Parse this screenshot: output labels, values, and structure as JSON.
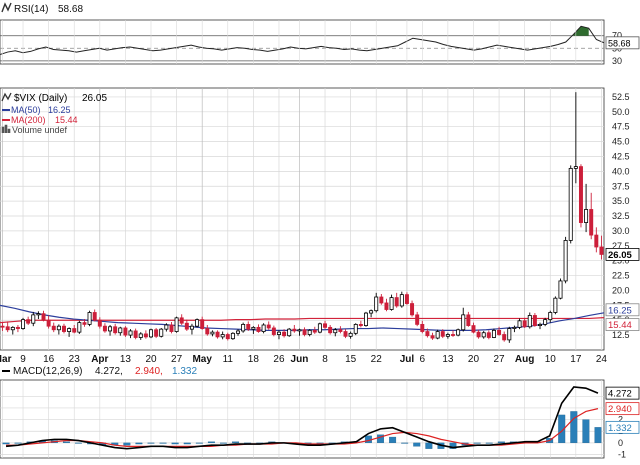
{
  "colors": {
    "background": "#ffffff",
    "grid": "#d8d8d8",
    "frame": "#333333",
    "up_candle": "#000000",
    "down_candle": "#cc1f3a",
    "ma50": "#2c3e9c",
    "ma200": "#d2233a",
    "rsi_line": "#222222",
    "rsi_fill": "#2e6b2e",
    "macd_line": "#000000",
    "macd_signal": "#dd2222",
    "macd_hist": "#2a7fb8",
    "current_price_box": "#000000"
  },
  "chart_data": [
    {
      "type": "line",
      "panel": "rsi",
      "legend_icon": "candlestick-icon",
      "legend_label": "RSI(14)",
      "legend_value": "58.68",
      "ylim": [
        25,
        95
      ],
      "reference_levels": [
        70,
        50,
        30
      ],
      "tick_labels": [
        "70",
        "50",
        "30"
      ],
      "current_value_label": "58.68",
      "series": [
        {
          "name": "RSI(14)",
          "values": [
            40,
            44,
            46,
            43,
            45,
            49,
            52,
            48,
            47,
            46,
            44,
            46,
            48,
            50,
            47,
            49,
            51,
            52,
            50,
            48,
            46,
            47,
            49,
            51,
            53,
            55,
            52,
            50,
            49,
            47,
            49,
            51,
            50,
            48,
            47,
            45,
            47,
            49,
            52,
            50,
            49,
            51,
            53,
            51,
            50,
            48,
            49,
            47,
            46,
            48,
            50,
            52,
            54,
            60,
            66,
            64,
            62,
            60,
            56,
            53,
            51,
            49,
            47,
            49,
            52,
            55,
            53,
            51,
            49,
            47,
            49,
            51,
            53,
            56,
            60,
            72,
            85,
            82,
            64,
            58.68
          ]
        }
      ]
    },
    {
      "type": "candlestick",
      "panel": "price",
      "legend": [
        {
          "icon": "candlestick-icon",
          "label": "$VIX (Daily)",
          "value": "26.05",
          "color": "#000000"
        },
        {
          "label": "MA(50)",
          "value": "16.25",
          "color": "#2c3e9c"
        },
        {
          "label": "MA(200)",
          "value": "15.44",
          "color": "#d2233a"
        },
        {
          "icon": "bar-icon",
          "label": "Volume undef",
          "color": "#555555"
        }
      ],
      "ylim": [
        10,
        54
      ],
      "y_ticks": [
        "52.5",
        "50.0",
        "47.5",
        "45.0",
        "42.5",
        "40.0",
        "37.5",
        "35.0",
        "32.5",
        "30.0",
        "27.5",
        "25.0",
        "22.5",
        "20.0",
        "17.5",
        "15.0",
        "12.5"
      ],
      "y_tick_values": [
        52.5,
        50,
        47.5,
        45,
        42.5,
        40,
        37.5,
        35,
        32.5,
        30,
        27.5,
        25,
        22.5,
        20,
        17.5,
        15,
        12.5
      ],
      "value_labels": [
        {
          "value": 26.05,
          "text": "26.05",
          "style": "current"
        },
        {
          "value": 16.25,
          "text": "16.25",
          "style": "ma50"
        },
        {
          "value": 15.44,
          "text": "15.44",
          "style": "ma200"
        }
      ],
      "x_labels": [
        "Mar",
        "9",
        "16",
        "23",
        "Apr",
        "13",
        "20",
        "27",
        "May",
        "11",
        "18",
        "26",
        "Jun",
        "8",
        "15",
        "22",
        "Jul",
        "6",
        "13",
        "20",
        "27",
        "Aug",
        "10",
        "17",
        "24"
      ],
      "x_label_index": [
        0,
        4,
        9,
        14,
        19,
        24,
        29,
        34,
        39,
        44,
        49,
        54,
        58,
        63,
        68,
        73,
        79,
        82,
        87,
        92,
        97,
        102,
        107,
        112,
        117
      ],
      "bold_x_labels": [
        "Mar",
        "Apr",
        "May",
        "Jun",
        "Jul",
        "Aug"
      ],
      "candles": [
        [
          14,
          14.6,
          13.2,
          13.9
        ],
        [
          13.9,
          14.8,
          13.0,
          13.4
        ],
        [
          13.4,
          14.0,
          12.6,
          13.8
        ],
        [
          13.8,
          14.2,
          13.0,
          13.6
        ],
        [
          13.6,
          15.4,
          13.4,
          15.1
        ],
        [
          15.1,
          15.6,
          14.2,
          14.5
        ],
        [
          14.5,
          16.4,
          14.0,
          15.9
        ],
        [
          15.9,
          16.5,
          15.2,
          16.1
        ],
        [
          16.1,
          16.6,
          14.8,
          15.0
        ],
        [
          15.0,
          15.8,
          13.6,
          14.0
        ],
        [
          14.0,
          14.6,
          13.0,
          13.4
        ],
        [
          13.4,
          14.3,
          12.6,
          14.0
        ],
        [
          14.0,
          14.4,
          12.8,
          13.1
        ],
        [
          13.1,
          13.8,
          12.2,
          13.6
        ],
        [
          13.6,
          14.2,
          12.8,
          13.0
        ],
        [
          13.0,
          14.9,
          12.7,
          14.6
        ],
        [
          14.6,
          15.2,
          13.9,
          14.3
        ],
        [
          14.3,
          16.6,
          14.0,
          16.3
        ],
        [
          16.3,
          16.8,
          14.8,
          15.0
        ],
        [
          15.0,
          15.5,
          13.6,
          14.0
        ],
        [
          14.0,
          14.5,
          12.9,
          13.2
        ],
        [
          13.2,
          14.2,
          12.4,
          13.9
        ],
        [
          13.9,
          14.4,
          12.6,
          12.9
        ],
        [
          12.9,
          13.9,
          12.4,
          13.7
        ],
        [
          13.7,
          14.0,
          12.2,
          12.5
        ],
        [
          12.5,
          13.5,
          12.0,
          13.2
        ],
        [
          13.2,
          13.6,
          11.8,
          12.1
        ],
        [
          12.1,
          13.0,
          11.7,
          12.7
        ],
        [
          12.7,
          13.3,
          11.9,
          12.2
        ],
        [
          12.2,
          13.6,
          12.0,
          13.4
        ],
        [
          13.4,
          13.7,
          12.0,
          12.3
        ],
        [
          12.3,
          13.7,
          12.1,
          13.5
        ],
        [
          13.5,
          14.5,
          13.1,
          14.2
        ],
        [
          14.2,
          14.7,
          12.8,
          13.1
        ],
        [
          13.1,
          15.6,
          12.9,
          15.4
        ],
        [
          15.4,
          16.0,
          14.2,
          14.5
        ],
        [
          14.5,
          15.1,
          13.2,
          13.5
        ],
        [
          13.5,
          14.4,
          12.6,
          14.0
        ],
        [
          14.0,
          15.3,
          13.8,
          15.1
        ],
        [
          15.1,
          15.6,
          13.4,
          13.6
        ],
        [
          13.6,
          14.2,
          12.4,
          12.7
        ],
        [
          12.7,
          13.3,
          12.3,
          13.0
        ],
        [
          13.0,
          13.3,
          11.9,
          12.2
        ],
        [
          12.2,
          13.1,
          11.8,
          12.6
        ],
        [
          12.6,
          12.9,
          11.6,
          11.9
        ],
        [
          11.9,
          13.0,
          11.7,
          12.8
        ],
        [
          12.8,
          13.5,
          12.4,
          13.2
        ],
        [
          13.2,
          14.6,
          12.9,
          14.3
        ],
        [
          14.3,
          14.8,
          13.2,
          13.5
        ],
        [
          13.5,
          14.0,
          12.7,
          13.8
        ],
        [
          13.8,
          14.3,
          12.9,
          13.1
        ],
        [
          13.1,
          14.5,
          12.8,
          14.2
        ],
        [
          14.2,
          14.8,
          13.4,
          13.7
        ],
        [
          13.7,
          14.1,
          12.3,
          12.6
        ],
        [
          12.6,
          13.3,
          11.8,
          13.0
        ],
        [
          13.0,
          13.5,
          12.1,
          12.4
        ],
        [
          12.4,
          13.7,
          12.2,
          13.5
        ],
        [
          13.5,
          14.2,
          12.9,
          13.2
        ],
        [
          13.2,
          13.6,
          12.4,
          13.4
        ],
        [
          13.4,
          13.8,
          12.3,
          12.6
        ],
        [
          12.6,
          13.5,
          12.3,
          13.3
        ],
        [
          13.3,
          13.9,
          12.7,
          13.0
        ],
        [
          13.0,
          14.6,
          12.8,
          14.4
        ],
        [
          14.4,
          14.9,
          13.5,
          13.8
        ],
        [
          13.8,
          14.2,
          12.6,
          12.9
        ],
        [
          12.9,
          13.7,
          12.3,
          13.4
        ],
        [
          13.4,
          14.0,
          12.8,
          13.1
        ],
        [
          13.1,
          13.5,
          12.0,
          12.3
        ],
        [
          12.3,
          13.1,
          11.9,
          12.8
        ],
        [
          12.8,
          14.5,
          12.5,
          14.3
        ],
        [
          14.3,
          14.9,
          13.8,
          14.1
        ],
        [
          14.1,
          16.4,
          13.9,
          16.2
        ],
        [
          16.2,
          16.8,
          15.5,
          16.6
        ],
        [
          16.6,
          19.6,
          16.3,
          18.9
        ],
        [
          18.9,
          19.4,
          17.6,
          17.9
        ],
        [
          17.9,
          18.6,
          16.5,
          16.8
        ],
        [
          16.8,
          19.3,
          16.6,
          18.8
        ],
        [
          18.8,
          19.6,
          17.1,
          17.4
        ],
        [
          17.4,
          19.8,
          17.1,
          19.3
        ],
        [
          19.3,
          19.7,
          17.6,
          17.8
        ],
        [
          17.8,
          18.3,
          15.6,
          15.9
        ],
        [
          15.9,
          16.4,
          14.0,
          14.3
        ],
        [
          14.3,
          14.9,
          12.8,
          13.1
        ],
        [
          13.1,
          13.6,
          12.1,
          12.4
        ],
        [
          12.4,
          12.9,
          11.7,
          12.0
        ],
        [
          12.0,
          13.4,
          11.8,
          13.1
        ],
        [
          13.1,
          13.5,
          12.0,
          12.3
        ],
        [
          12.3,
          12.9,
          11.9,
          12.6
        ],
        [
          12.6,
          13.3,
          12.2,
          12.5
        ],
        [
          12.5,
          13.6,
          12.3,
          13.4
        ],
        [
          13.4,
          17.1,
          13.1,
          15.9
        ],
        [
          15.9,
          16.4,
          13.9,
          14.1
        ],
        [
          14.1,
          14.6,
          12.8,
          13.0
        ],
        [
          13.0,
          13.4,
          11.9,
          12.2
        ],
        [
          12.2,
          13.2,
          11.9,
          12.9
        ],
        [
          12.9,
          13.3,
          11.8,
          12.1
        ],
        [
          12.1,
          13.6,
          12.0,
          13.3
        ],
        [
          13.3,
          13.9,
          12.4,
          12.6
        ],
        [
          12.6,
          13.1,
          11.4,
          11.7
        ],
        [
          11.7,
          13.9,
          11.2,
          13.6
        ],
        [
          13.6,
          14.1,
          13.0,
          13.8
        ],
        [
          13.8,
          15.3,
          13.5,
          14.9
        ],
        [
          14.9,
          15.4,
          13.7,
          13.9
        ],
        [
          13.9,
          16.3,
          13.6,
          15.8
        ],
        [
          15.8,
          16.2,
          13.9,
          14.1
        ],
        [
          14.1,
          14.6,
          13.5,
          14.3
        ],
        [
          14.3,
          15.4,
          14.0,
          15.1
        ],
        [
          15.1,
          16.6,
          14.6,
          16.3
        ],
        [
          16.3,
          19.0,
          16.0,
          18.7
        ],
        [
          18.7,
          22.0,
          18.5,
          21.6
        ],
        [
          21.6,
          29.0,
          21.2,
          28.4
        ],
        [
          28.4,
          41.0,
          27.9,
          40.5
        ],
        [
          40.5,
          53.3,
          38.0,
          40.8
        ],
        [
          40.8,
          41.2,
          30.6,
          31.4
        ],
        [
          31.4,
          37.9,
          29.8,
          33.6
        ],
        [
          33.6,
          36.4,
          28.6,
          29.3
        ],
        [
          29.3,
          30.6,
          26.4,
          27.3
        ],
        [
          27.3,
          29.2,
          25.2,
          26.05
        ]
      ],
      "series": [
        {
          "name": "MA(50)",
          "values": [
            17.5,
            17.0,
            16.4,
            15.9,
            15.5,
            15.2,
            15.0,
            14.8,
            14.6,
            14.5,
            14.4,
            14.3,
            14.1,
            13.9,
            13.7,
            13.6,
            13.5,
            13.4,
            13.3,
            13.3,
            13.3,
            13.4,
            13.4,
            13.5,
            13.6,
            13.6,
            13.7,
            13.6,
            13.5,
            13.4,
            13.3,
            13.3,
            13.3,
            13.4,
            13.6,
            13.8,
            14.0,
            14.4,
            14.9,
            15.3,
            15.8,
            16.25
          ]
        },
        {
          "name": "MA(200)",
          "values": [
            14.6,
            14.8,
            15.0,
            15.0,
            15.0,
            15.0,
            15.0,
            15.0,
            15.0,
            15.0,
            15.0,
            15.0,
            15.0,
            15.0,
            15.0,
            15.0,
            15.1,
            15.1,
            15.2,
            15.2,
            15.2,
            15.3,
            15.3,
            15.3,
            15.3,
            15.3,
            15.3,
            15.3,
            15.3,
            15.3,
            15.3,
            15.3,
            15.3,
            15.3,
            15.3,
            15.3,
            15.3,
            15.3,
            15.3,
            15.3,
            15.3,
            15.44
          ]
        }
      ]
    },
    {
      "type": "bar",
      "panel": "macd",
      "legend_label": "MACD(12,26,9)",
      "legend_value": "4.272,",
      "legend_signal_value": "2.940,",
      "legend_hist_value": "1.332",
      "ylim": [
        -1.3,
        5.4
      ],
      "y_ticks": [
        "4",
        "3",
        "2",
        "1",
        "0",
        "-1"
      ],
      "y_tick_values": [
        4,
        3,
        2,
        1,
        0,
        -1
      ],
      "value_labels": [
        {
          "value": 4.272,
          "text": "4.272",
          "style": "macd"
        },
        {
          "value": 2.94,
          "text": "2.940",
          "style": "signal"
        },
        {
          "value": 1.332,
          "text": "1.332",
          "style": "hist"
        }
      ],
      "series": [
        {
          "name": "MACD",
          "values": [
            -0.3,
            -0.2,
            0.0,
            0.2,
            0.3,
            0.3,
            0.2,
            0.0,
            -0.2,
            -0.4,
            -0.5,
            -0.4,
            -0.3,
            -0.3,
            -0.4,
            -0.4,
            -0.3,
            -0.2,
            -0.2,
            -0.1,
            -0.1,
            -0.1,
            0.0,
            0.0,
            -0.1,
            -0.2,
            -0.2,
            -0.1,
            0.0,
            0.1,
            0.8,
            1.2,
            1.3,
            0.9,
            0.5,
            0.1,
            -0.2,
            -0.4,
            -0.3,
            -0.2,
            -0.2,
            -0.1,
            0.0,
            0.1,
            0.1,
            0.6,
            3.4,
            4.8,
            4.7,
            4.272
          ]
        },
        {
          "name": "Signal",
          "values": [
            -0.2,
            -0.2,
            -0.1,
            0.0,
            0.1,
            0.2,
            0.2,
            0.1,
            0.0,
            -0.2,
            -0.3,
            -0.3,
            -0.3,
            -0.3,
            -0.3,
            -0.3,
            -0.3,
            -0.3,
            -0.2,
            -0.2,
            -0.1,
            -0.1,
            -0.1,
            0.0,
            0.0,
            -0.1,
            -0.1,
            -0.1,
            -0.1,
            0.0,
            0.2,
            0.5,
            0.8,
            0.9,
            0.8,
            0.6,
            0.3,
            0.1,
            -0.1,
            -0.2,
            -0.2,
            -0.2,
            -0.1,
            0.0,
            0.0,
            0.2,
            1.0,
            2.1,
            2.7,
            2.94
          ]
        },
        {
          "name": "Histogram",
          "values": [
            -0.1,
            0.0,
            0.1,
            0.2,
            0.2,
            0.1,
            0.0,
            -0.1,
            -0.2,
            -0.2,
            -0.2,
            -0.1,
            0.0,
            0.0,
            -0.1,
            -0.1,
            0.0,
            0.1,
            0.0,
            0.1,
            0.0,
            0.0,
            0.1,
            0.0,
            -0.1,
            -0.1,
            -0.1,
            0.0,
            0.1,
            0.1,
            0.6,
            0.7,
            0.5,
            0.0,
            -0.3,
            -0.5,
            -0.5,
            -0.5,
            -0.2,
            0.0,
            0.0,
            0.1,
            0.1,
            0.1,
            0.1,
            0.4,
            2.4,
            2.7,
            2.0,
            1.332
          ]
        }
      ]
    }
  ]
}
